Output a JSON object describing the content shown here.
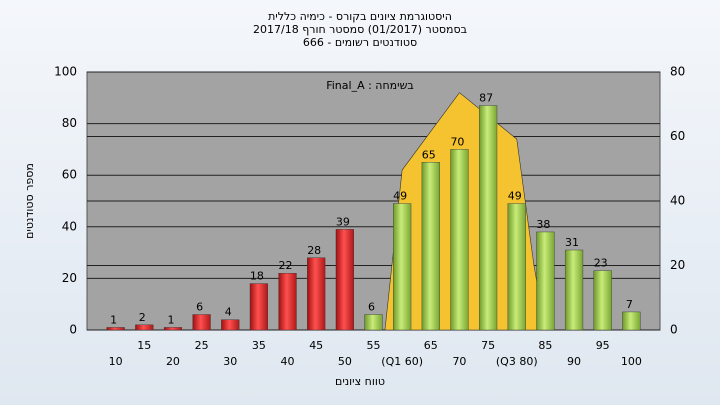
{
  "chart_data": {
    "type": "bar",
    "title": [
      "היסטוגרמת ציונים בקורס - כימיה כללית",
      "בסמסטר  (01/2017)  סמסטר חורף 2017/18",
      "סטודנטים רשומים - 666"
    ],
    "annotation": "Final_A : בשימחה",
    "y_label": "מספר סטודנטים",
    "x_label": "טווח ציונים",
    "categories": [
      "10",
      "15",
      "20",
      "25",
      "30",
      "35",
      "40",
      "45",
      "50",
      "55",
      "(Q1 60)",
      "65",
      "70",
      "75",
      "(Q3 80)",
      "85",
      "90",
      "95",
      "100"
    ],
    "xlim": [
      5,
      105
    ],
    "series": [
      {
        "values": [
          1,
          2,
          1,
          6,
          4,
          18,
          22,
          28,
          39,
          6,
          49,
          65,
          70,
          87,
          49,
          38,
          31,
          23,
          7
        ],
        "colors": [
          "red",
          "red",
          "red",
          "red",
          "red",
          "red",
          "red",
          "red",
          "red",
          "green",
          "green",
          "green",
          "green",
          "green",
          "green",
          "green",
          "green",
          "green",
          "green"
        ]
      }
    ],
    "curve": {
      "color": "#f5c330",
      "x": [
        57,
        60,
        70,
        80,
        83,
        85
      ],
      "values": [
        0,
        62,
        92,
        74,
        25,
        0
      ]
    },
    "ylim": [
      0,
      100
    ],
    "yticks": [
      0,
      20,
      40,
      60,
      80,
      100
    ],
    "y2lim": [
      0,
      80
    ],
    "y2ticks": [
      0,
      20,
      40,
      60,
      80
    ],
    "grid": true
  }
}
